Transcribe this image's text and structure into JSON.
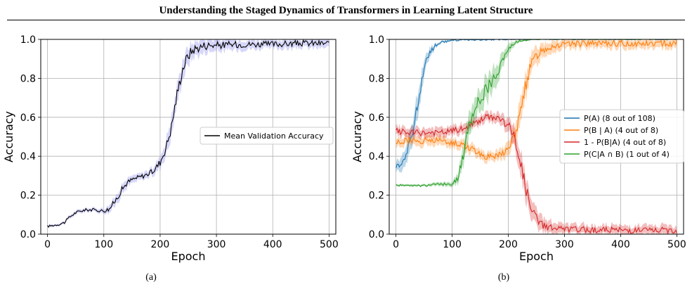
{
  "header": {
    "title": "Understanding the Staged Dynamics of Transformers in Learning Latent Structure"
  },
  "captions": [
    "(a)",
    "(b)"
  ],
  "chart_data": [
    {
      "type": "line",
      "xlabel": "Epoch",
      "ylabel": "Accuracy",
      "xlim": [
        -12,
        512
      ],
      "ylim": [
        0,
        1
      ],
      "xticks": [
        "0",
        "100",
        "200",
        "300",
        "400",
        "500"
      ],
      "yticks": [
        "0.0",
        "0.2",
        "0.4",
        "0.6",
        "0.8",
        "1.0"
      ],
      "grid": true,
      "legend": "center-right",
      "series": [
        {
          "name": "Mean Validation Accuracy",
          "color": "#000000",
          "band_color": "#7b7bf0",
          "x": [
            0,
            10,
            20,
            30,
            40,
            50,
            60,
            70,
            80,
            90,
            100,
            110,
            120,
            130,
            140,
            150,
            160,
            170,
            180,
            190,
            200,
            210,
            220,
            230,
            240,
            250,
            260,
            270,
            280,
            290,
            300,
            350,
            400,
            450,
            500
          ],
          "y": [
            0.04,
            0.045,
            0.05,
            0.06,
            0.09,
            0.11,
            0.12,
            0.125,
            0.125,
            0.122,
            0.12,
            0.13,
            0.17,
            0.22,
            0.26,
            0.28,
            0.29,
            0.3,
            0.31,
            0.33,
            0.37,
            0.44,
            0.55,
            0.72,
            0.85,
            0.92,
            0.95,
            0.96,
            0.97,
            0.97,
            0.97,
            0.975,
            0.975,
            0.98,
            0.98
          ],
          "band": [
            0.005,
            0.005,
            0.005,
            0.006,
            0.008,
            0.008,
            0.008,
            0.008,
            0.008,
            0.008,
            0.01,
            0.015,
            0.02,
            0.02,
            0.02,
            0.015,
            0.015,
            0.015,
            0.015,
            0.02,
            0.025,
            0.03,
            0.04,
            0.04,
            0.04,
            0.04,
            0.035,
            0.03,
            0.03,
            0.025,
            0.025,
            0.02,
            0.02,
            0.02,
            0.02
          ]
        }
      ]
    },
    {
      "type": "line",
      "xlabel": "Epoch",
      "ylabel": "Accuracy",
      "xlim": [
        -12,
        512
      ],
      "ylim": [
        0,
        1
      ],
      "xticks": [
        "0",
        "100",
        "200",
        "300",
        "400",
        "500"
      ],
      "yticks": [
        "0.0",
        "0.2",
        "0.4",
        "0.6",
        "0.8",
        "1.0"
      ],
      "grid": true,
      "legend": "center-right",
      "series": [
        {
          "name": "P(A) (8 out of 108)",
          "color": "#1f77b4",
          "x": [
            0,
            10,
            20,
            30,
            40,
            50,
            60,
            70,
            80,
            90,
            100,
            120,
            150,
            200,
            250,
            300,
            400,
            500
          ],
          "y": [
            0.35,
            0.37,
            0.42,
            0.52,
            0.7,
            0.85,
            0.93,
            0.97,
            0.985,
            0.99,
            0.995,
            0.997,
            0.998,
            0.999,
            1.0,
            1.0,
            1.0,
            1.0
          ],
          "band": [
            0.02,
            0.03,
            0.04,
            0.05,
            0.05,
            0.03,
            0.02,
            0.01,
            0.005,
            0.005,
            0.003,
            0.002,
            0.002,
            0.001,
            0,
            0,
            0,
            0
          ]
        },
        {
          "name": "P(B | A) (4 out of 8)",
          "color": "#ff7f0e",
          "x": [
            0,
            20,
            40,
            60,
            80,
            100,
            120,
            140,
            160,
            180,
            200,
            210,
            220,
            230,
            240,
            250,
            260,
            280,
            300,
            400,
            500
          ],
          "y": [
            0.47,
            0.48,
            0.48,
            0.48,
            0.48,
            0.47,
            0.46,
            0.43,
            0.4,
            0.4,
            0.44,
            0.5,
            0.6,
            0.75,
            0.87,
            0.92,
            0.95,
            0.97,
            0.975,
            0.98,
            0.98
          ],
          "band": [
            0.02,
            0.02,
            0.02,
            0.02,
            0.02,
            0.02,
            0.02,
            0.02,
            0.02,
            0.02,
            0.03,
            0.04,
            0.05,
            0.05,
            0.04,
            0.035,
            0.03,
            0.025,
            0.02,
            0.02,
            0.02
          ]
        },
        {
          "name": "1 - P(B|A) (4 out of 8)",
          "color": "#d62728",
          "x": [
            0,
            20,
            40,
            60,
            80,
            100,
            120,
            140,
            160,
            180,
            200,
            210,
            220,
            230,
            240,
            250,
            260,
            280,
            300,
            400,
            500
          ],
          "y": [
            0.53,
            0.52,
            0.52,
            0.52,
            0.52,
            0.53,
            0.54,
            0.57,
            0.6,
            0.6,
            0.56,
            0.5,
            0.4,
            0.25,
            0.13,
            0.08,
            0.05,
            0.03,
            0.025,
            0.02,
            0.02
          ],
          "band": [
            0.02,
            0.02,
            0.02,
            0.02,
            0.02,
            0.02,
            0.02,
            0.02,
            0.02,
            0.02,
            0.03,
            0.04,
            0.05,
            0.05,
            0.04,
            0.035,
            0.03,
            0.025,
            0.02,
            0.02,
            0.02
          ]
        },
        {
          "name": "P(C|A ∩ B) (1 out of 4)",
          "color": "#2ca02c",
          "x": [
            0,
            50,
            100,
            110,
            120,
            130,
            140,
            150,
            160,
            170,
            180,
            190,
            200,
            210,
            220,
            230,
            240,
            260,
            300,
            400,
            500
          ],
          "y": [
            0.25,
            0.25,
            0.26,
            0.29,
            0.4,
            0.55,
            0.65,
            0.7,
            0.74,
            0.78,
            0.82,
            0.88,
            0.95,
            0.98,
            0.99,
            0.995,
            1.0,
            1.0,
            1.0,
            1.0,
            1.0
          ],
          "band": [
            0.005,
            0.005,
            0.01,
            0.02,
            0.04,
            0.05,
            0.05,
            0.05,
            0.05,
            0.05,
            0.04,
            0.03,
            0.02,
            0.01,
            0.005,
            0.003,
            0,
            0,
            0,
            0,
            0
          ]
        }
      ]
    }
  ]
}
